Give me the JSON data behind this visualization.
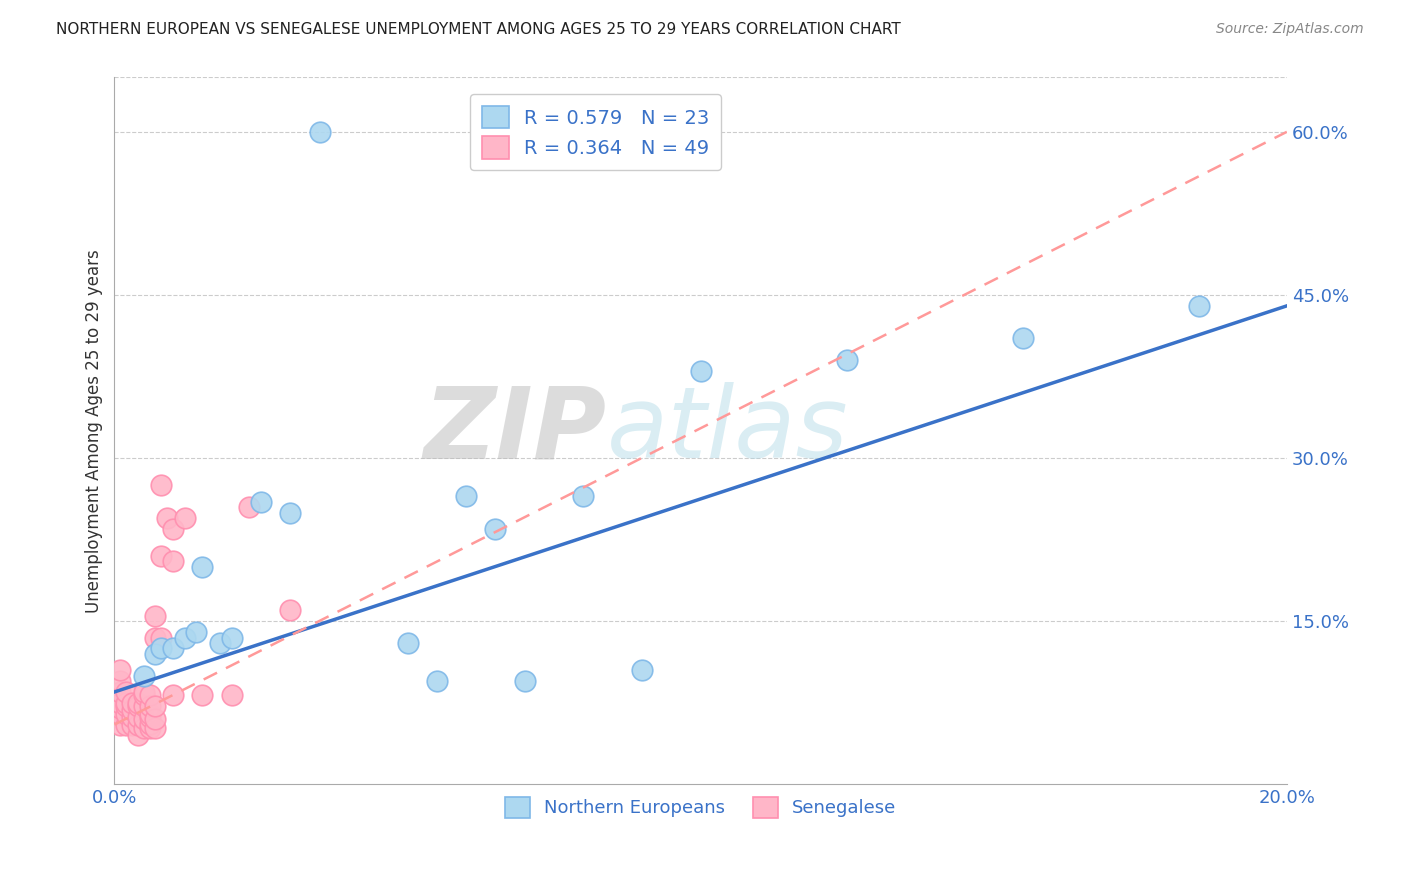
{
  "title": "NORTHERN EUROPEAN VS SENEGALESE UNEMPLOYMENT AMONG AGES 25 TO 29 YEARS CORRELATION CHART",
  "source": "Source: ZipAtlas.com",
  "ylabel": "Unemployment Among Ages 25 to 29 years",
  "xlim": [
    0.0,
    0.2
  ],
  "ylim": [
    0.0,
    0.65
  ],
  "xticks": [
    0.0,
    0.04,
    0.08,
    0.12,
    0.16,
    0.2
  ],
  "xticklabels": [
    "0.0%",
    "",
    "",
    "",
    "",
    "20.0%"
  ],
  "yticks_right": [
    0.15,
    0.3,
    0.45,
    0.6
  ],
  "yticklabels_right": [
    "15.0%",
    "30.0%",
    "45.0%",
    "60.0%"
  ],
  "blue_R": 0.579,
  "blue_N": 23,
  "pink_R": 0.364,
  "pink_N": 49,
  "blue_color": "#ADD8F0",
  "pink_color": "#FFB6C8",
  "blue_edge": "#7FB8E8",
  "pink_edge": "#FF8FAF",
  "blue_line_color": "#3A72C8",
  "pink_line_color": "#FF9999",
  "watermark_zip": "ZIP",
  "watermark_atlas": "atlas",
  "blue_points_x": [
    0.035,
    0.005,
    0.007,
    0.008,
    0.01,
    0.012,
    0.014,
    0.015,
    0.018,
    0.02,
    0.025,
    0.03,
    0.05,
    0.055,
    0.06,
    0.065,
    0.08,
    0.09,
    0.125,
    0.155,
    0.185,
    0.1,
    0.07
  ],
  "blue_points_y": [
    0.6,
    0.1,
    0.12,
    0.125,
    0.125,
    0.135,
    0.14,
    0.2,
    0.13,
    0.135,
    0.26,
    0.25,
    0.13,
    0.095,
    0.265,
    0.235,
    0.265,
    0.105,
    0.39,
    0.41,
    0.44,
    0.38,
    0.095
  ],
  "pink_points_x": [
    0.001,
    0.001,
    0.001,
    0.001,
    0.001,
    0.001,
    0.001,
    0.002,
    0.002,
    0.002,
    0.002,
    0.002,
    0.003,
    0.003,
    0.003,
    0.003,
    0.004,
    0.004,
    0.004,
    0.004,
    0.004,
    0.005,
    0.005,
    0.005,
    0.005,
    0.005,
    0.006,
    0.006,
    0.006,
    0.006,
    0.006,
    0.006,
    0.007,
    0.007,
    0.007,
    0.007,
    0.007,
    0.008,
    0.008,
    0.008,
    0.009,
    0.01,
    0.01,
    0.01,
    0.012,
    0.015,
    0.02,
    0.023,
    0.03
  ],
  "pink_points_y": [
    0.055,
    0.065,
    0.07,
    0.075,
    0.085,
    0.095,
    0.105,
    0.055,
    0.065,
    0.072,
    0.075,
    0.085,
    0.055,
    0.062,
    0.068,
    0.075,
    0.045,
    0.055,
    0.062,
    0.072,
    0.075,
    0.052,
    0.06,
    0.072,
    0.082,
    0.085,
    0.052,
    0.056,
    0.062,
    0.065,
    0.072,
    0.082,
    0.052,
    0.06,
    0.072,
    0.135,
    0.155,
    0.135,
    0.21,
    0.275,
    0.245,
    0.082,
    0.205,
    0.235,
    0.245,
    0.082,
    0.082,
    0.255,
    0.16
  ],
  "blue_line_x0": 0.0,
  "blue_line_y0": 0.085,
  "blue_line_x1": 0.2,
  "blue_line_y1": 0.44,
  "pink_line_x0": 0.0,
  "pink_line_y0": 0.055,
  "pink_line_x1": 0.2,
  "pink_line_y1": 0.6
}
